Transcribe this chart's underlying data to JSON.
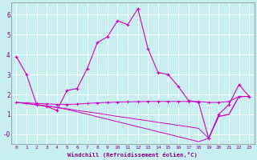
{
  "xlabel": "Windchill (Refroidissement éolien,°C)",
  "background_color": "#c8eef0",
  "grid_color": "#ffffff",
  "line_color": "#cc00cc",
  "xlim": [
    -0.5,
    23.5
  ],
  "ylim": [
    -0.5,
    6.6
  ],
  "xticks": [
    0,
    1,
    2,
    3,
    4,
    5,
    6,
    7,
    8,
    9,
    10,
    11,
    12,
    13,
    14,
    15,
    16,
    17,
    18,
    19,
    20,
    21,
    22,
    23
  ],
  "yticks": [
    0,
    1,
    2,
    3,
    4,
    5,
    6
  ],
  "ytick_labels": [
    "-0",
    "1",
    "2",
    "3",
    "4",
    "5",
    "6"
  ],
  "line1_x": [
    0,
    1,
    2,
    3,
    4,
    5,
    6,
    7,
    8,
    9,
    10,
    11,
    12,
    13,
    14,
    15,
    16,
    17,
    18,
    19,
    20,
    21,
    22,
    23
  ],
  "line1_y": [
    3.9,
    3.0,
    1.5,
    1.4,
    1.2,
    2.2,
    2.3,
    3.3,
    4.6,
    4.9,
    5.7,
    5.5,
    6.3,
    4.3,
    3.1,
    3.0,
    2.4,
    1.7,
    1.6,
    -0.2,
    1.0,
    1.5,
    2.5,
    1.9
  ],
  "line2_x": [
    0,
    1,
    2,
    3,
    4,
    5,
    6,
    7,
    8,
    9,
    10,
    11,
    12,
    13,
    14,
    15,
    16,
    17,
    18,
    19,
    20,
    21,
    22,
    23
  ],
  "line2_y": [
    1.6,
    1.58,
    1.55,
    1.53,
    1.5,
    1.5,
    1.52,
    1.55,
    1.58,
    1.6,
    1.62,
    1.63,
    1.64,
    1.65,
    1.65,
    1.65,
    1.65,
    1.65,
    1.65,
    1.6,
    1.6,
    1.65,
    1.9,
    1.9
  ],
  "line3_x": [
    0,
    1,
    2,
    3,
    4,
    5,
    6,
    7,
    8,
    9,
    10,
    11,
    12,
    13,
    14,
    15,
    16,
    17,
    18,
    19,
    20,
    21,
    22,
    23
  ],
  "line3_y": [
    1.6,
    1.55,
    1.48,
    1.42,
    1.35,
    1.28,
    1.2,
    1.13,
    1.06,
    0.98,
    0.9,
    0.83,
    0.75,
    0.68,
    0.6,
    0.53,
    0.45,
    0.38,
    0.3,
    -0.2,
    0.9,
    1.0,
    1.9,
    1.9
  ],
  "line4_x": [
    0,
    1,
    2,
    3,
    4,
    5,
    6,
    7,
    8,
    9,
    10,
    11,
    12,
    13,
    14,
    15,
    16,
    17,
    18,
    19,
    20,
    21,
    22,
    23
  ],
  "line4_y": [
    1.6,
    1.55,
    1.48,
    1.42,
    1.35,
    1.25,
    1.13,
    1.01,
    0.88,
    0.76,
    0.63,
    0.51,
    0.38,
    0.26,
    0.13,
    0.01,
    -0.12,
    -0.24,
    -0.37,
    -0.2,
    0.9,
    1.0,
    1.9,
    1.9
  ]
}
